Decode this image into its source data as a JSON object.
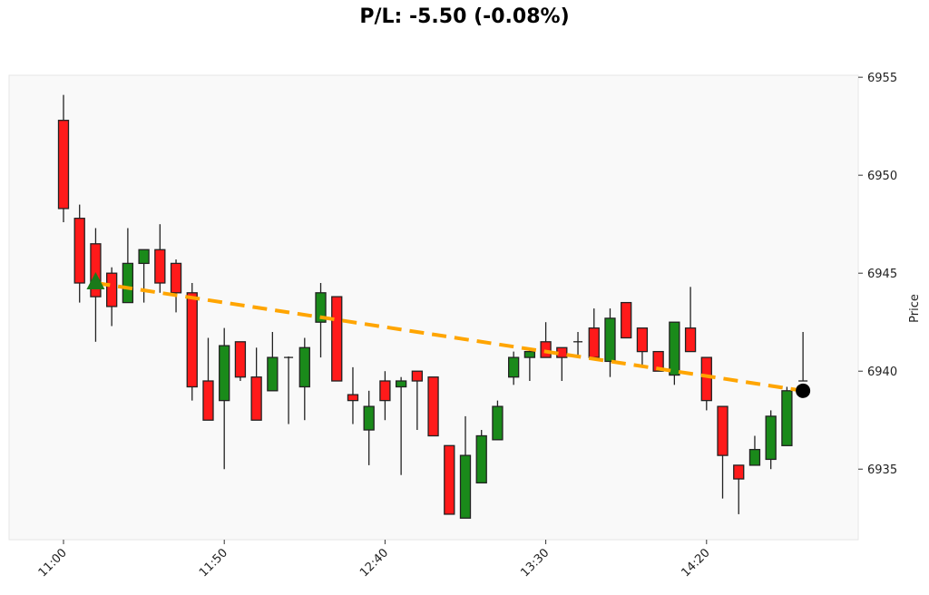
{
  "chart_data": {
    "type": "candlestick",
    "title": "P/L: -5.50 (-0.08%)",
    "xlabel": "",
    "ylabel": "Price",
    "ylim": [
      6931.4,
      6955.1
    ],
    "yticks": [
      6935,
      6940,
      6945,
      6950,
      6955
    ],
    "xtick_labels": [
      "11:00",
      "11:50",
      "12:40",
      "13:30",
      "14:20"
    ],
    "xtick_index": [
      0,
      10,
      20,
      30,
      40
    ],
    "grid": false,
    "colors": {
      "up": "#1a8a1a",
      "down": "#ff1a1a",
      "trade_line": "#ffa500",
      "entry_marker": "#1a7a1a",
      "exit_marker": "#000000",
      "plot_bg": "#f9f9f9"
    },
    "candles": [
      [
        6952.8,
        6954.1,
        6947.6,
        6948.3
      ],
      [
        6947.8,
        6948.5,
        6943.5,
        6944.5
      ],
      [
        6946.5,
        6947.3,
        6941.5,
        6943.8
      ],
      [
        6945.0,
        6945.3,
        6942.3,
        6943.3
      ],
      [
        6943.5,
        6947.3,
        6943.5,
        6945.5
      ],
      [
        6945.5,
        6946.2,
        6943.5,
        6946.2
      ],
      [
        6946.2,
        6947.5,
        6944.0,
        6944.5
      ],
      [
        6945.5,
        6945.7,
        6943.0,
        6944.0
      ],
      [
        6944.0,
        6944.5,
        6938.5,
        6939.2
      ],
      [
        6939.5,
        6941.7,
        6937.5,
        6937.5
      ],
      [
        6938.5,
        6942.2,
        6935.0,
        6941.3
      ],
      [
        6941.5,
        6941.5,
        6939.5,
        6939.7
      ],
      [
        6939.7,
        6941.2,
        6937.5,
        6937.5
      ],
      [
        6939.0,
        6942.0,
        6939.0,
        6940.7
      ],
      [
        6940.7,
        6940.75,
        6937.3,
        6940.7
      ],
      [
        6939.2,
        6941.7,
        6937.5,
        6941.2
      ],
      [
        6942.5,
        6944.5,
        6940.7,
        6944.0
      ],
      [
        6943.8,
        6943.8,
        6939.5,
        6939.5
      ],
      [
        6938.8,
        6940.2,
        6937.3,
        6938.5
      ],
      [
        6937.0,
        6939.0,
        6935.2,
        6938.2
      ],
      [
        6939.5,
        6940.0,
        6937.5,
        6938.5
      ],
      [
        6939.2,
        6939.7,
        6934.7,
        6939.5
      ],
      [
        6940.0,
        6940.0,
        6937.0,
        6939.5
      ],
      [
        6939.7,
        6939.7,
        6936.7,
        6936.7
      ],
      [
        6936.2,
        6936.2,
        6932.7,
        6932.7
      ],
      [
        6932.5,
        6937.7,
        6932.5,
        6935.7
      ],
      [
        6934.3,
        6937.0,
        6934.3,
        6936.7
      ],
      [
        6936.5,
        6938.5,
        6936.5,
        6938.2
      ],
      [
        6939.7,
        6941.0,
        6939.3,
        6940.7
      ],
      [
        6940.7,
        6941.1,
        6939.5,
        6941.0
      ],
      [
        6941.5,
        6942.5,
        6940.7,
        6940.7
      ],
      [
        6941.2,
        6941.2,
        6939.5,
        6940.7
      ],
      [
        6941.5,
        6942.0,
        6940.7,
        6941.5
      ],
      [
        6942.2,
        6943.2,
        6940.7,
        6940.7
      ],
      [
        6940.5,
        6943.2,
        6939.7,
        6942.7
      ],
      [
        6943.5,
        6943.5,
        6941.7,
        6941.7
      ],
      [
        6942.2,
        6942.2,
        6940.2,
        6941.0
      ],
      [
        6941.0,
        6941.0,
        6940.0,
        6940.0
      ],
      [
        6939.8,
        6942.5,
        6939.3,
        6942.5
      ],
      [
        6942.2,
        6944.3,
        6941.0,
        6941.0
      ],
      [
        6940.7,
        6940.7,
        6938.0,
        6938.5
      ],
      [
        6938.2,
        6938.2,
        6933.5,
        6935.7
      ],
      [
        6935.2,
        6935.2,
        6932.7,
        6934.5
      ],
      [
        6935.2,
        6936.7,
        6935.2,
        6936.0
      ],
      [
        6935.5,
        6938.0,
        6935.0,
        6937.7
      ],
      [
        6936.2,
        6939.2,
        6936.2,
        6939.0
      ],
      [
        6939.5,
        6942.0,
        6939.5,
        6939.5
      ]
    ],
    "trade": {
      "entry_index": 2,
      "entry_price": 6944.5,
      "exit_index": 46,
      "exit_price": 6939.0,
      "pl": -5.5,
      "pl_pct": -0.08
    }
  }
}
